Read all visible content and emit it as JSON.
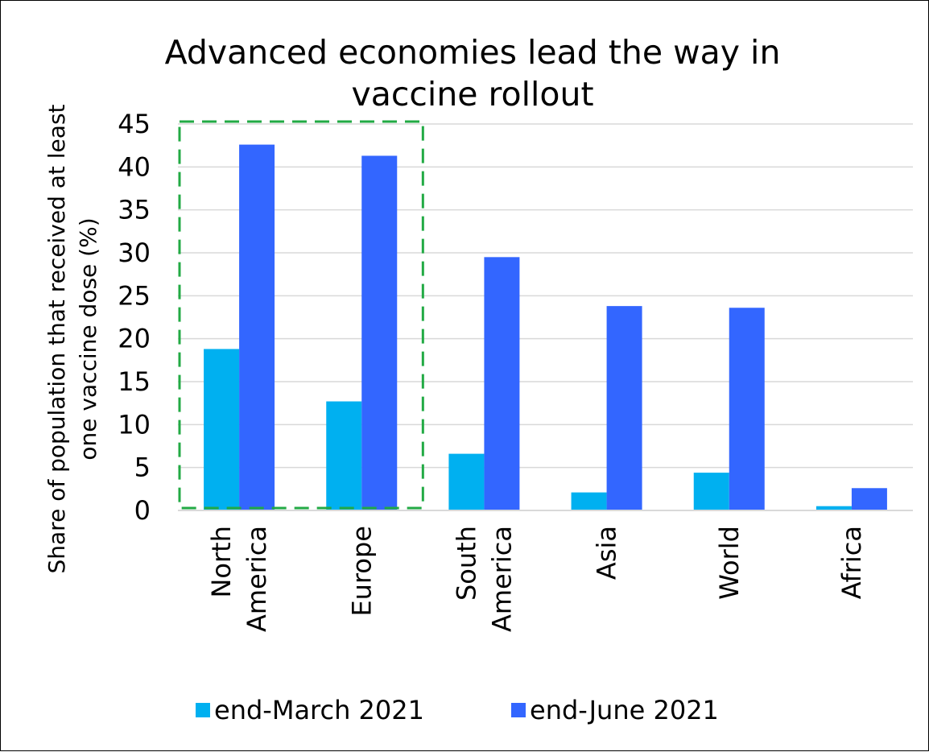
{
  "chart_data": {
    "type": "bar",
    "title_lines": [
      "Advanced economies lead the way in",
      "vaccine rollout"
    ],
    "ylabel_lines": [
      "Share of population that received at least",
      "one vaccine dose (%)"
    ],
    "xlabel": "",
    "ylim": [
      0,
      45
    ],
    "yticks": [
      0,
      5,
      10,
      15,
      20,
      25,
      30,
      35,
      40,
      45
    ],
    "grid": true,
    "legend_position": "bottom",
    "categories": [
      {
        "lines": [
          "North",
          "America"
        ]
      },
      {
        "lines": [
          "Europe"
        ]
      },
      {
        "lines": [
          "South",
          "America"
        ]
      },
      {
        "lines": [
          "Asia"
        ]
      },
      {
        "lines": [
          "World"
        ]
      },
      {
        "lines": [
          "Africa"
        ]
      }
    ],
    "series": [
      {
        "name": "end-March 2021",
        "color": "#00B0F0",
        "values": [
          18.8,
          12.7,
          6.6,
          2.1,
          4.4,
          0.5
        ]
      },
      {
        "name": "end-June 2021",
        "color": "#3366FF",
        "values": [
          42.6,
          41.3,
          29.5,
          23.8,
          23.6,
          2.6
        ]
      }
    ],
    "highlight": {
      "categories": [
        "North America",
        "Europe"
      ],
      "style": "dashed box",
      "color": "#22AA44"
    }
  }
}
